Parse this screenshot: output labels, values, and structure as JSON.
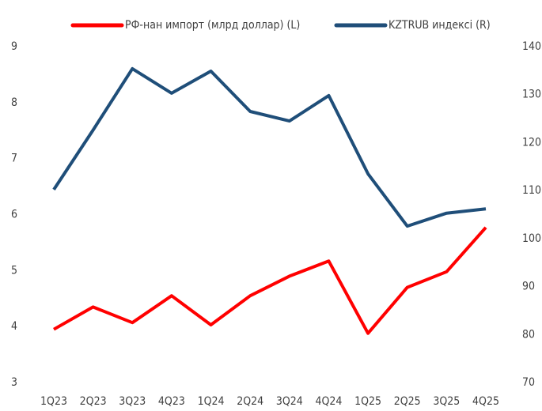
{
  "chart_data": {
    "type": "line",
    "categories": [
      "1Q23",
      "2Q23",
      "3Q23",
      "4Q23",
      "1Q24",
      "2Q24",
      "3Q24",
      "4Q24",
      "1Q25",
      "2Q25",
      "3Q25",
      "4Q25"
    ],
    "series": [
      {
        "name": "РФ-нан импорт (млрд доллар) (L)",
        "color": "#ff0000",
        "values": [
          3.95,
          4.35,
          4.07,
          4.55,
          4.03,
          4.55,
          4.9,
          5.17,
          3.88,
          4.7,
          4.98,
          5.77
        ]
      },
      {
        "name": "KZTRUB индексі (R)",
        "color": "#1f4e79",
        "axis": "y2",
        "values": [
          110.2,
          122.6,
          135.4,
          130.3,
          134.9,
          126.5,
          124.5,
          129.8,
          113.5,
          102.6,
          105.3,
          106.2
        ]
      }
    ],
    "ylim": [
      3,
      9
    ],
    "yticks": [
      3,
      4,
      5,
      6,
      7,
      8,
      9
    ],
    "y2lim": [
      70,
      140
    ],
    "y2ticks": [
      70,
      80,
      90,
      100,
      110,
      120,
      130,
      140
    ],
    "grid": false,
    "legend": "top"
  }
}
